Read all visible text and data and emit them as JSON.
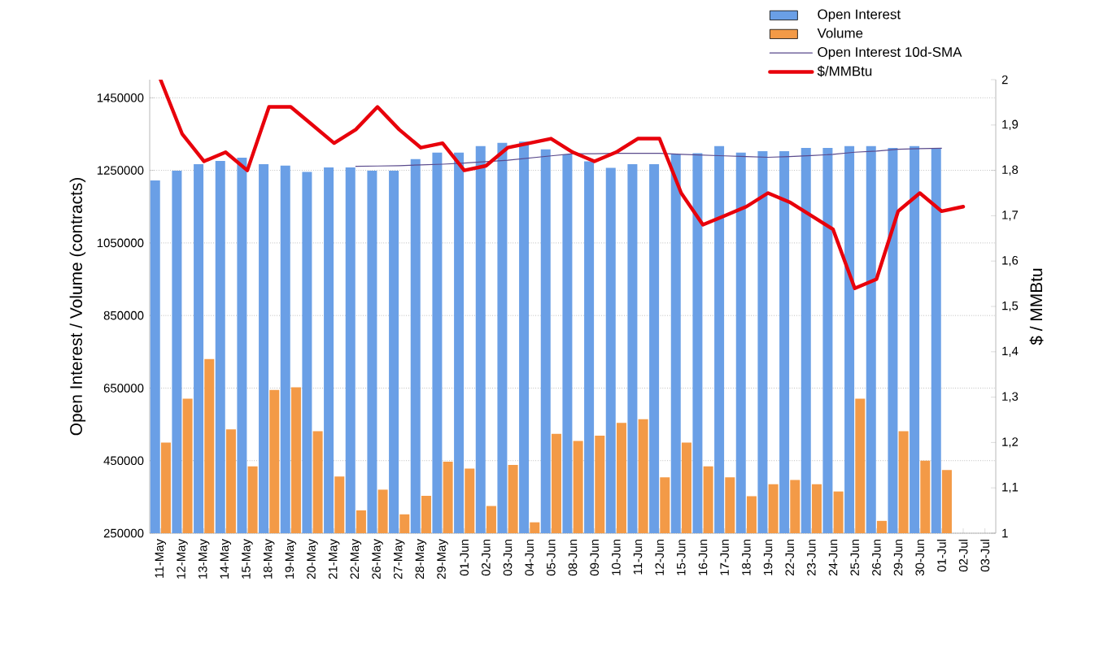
{
  "chart_data": {
    "type": "bar",
    "categories": [
      "11-May",
      "12-May",
      "13-May",
      "14-May",
      "15-May",
      "18-May",
      "19-May",
      "20-May",
      "21-May",
      "22-May",
      "26-May",
      "27-May",
      "28-May",
      "29-May",
      "01-Jun",
      "02-Jun",
      "03-Jun",
      "04-Jun",
      "05-Jun",
      "08-Jun",
      "09-Jun",
      "10-Jun",
      "11-Jun",
      "12-Jun",
      "15-Jun",
      "16-Jun",
      "17-Jun",
      "18-Jun",
      "19-Jun",
      "22-Jun",
      "23-Jun",
      "24-Jun",
      "25-Jun",
      "26-Jun",
      "29-Jun",
      "30-Jun",
      "01-Jul",
      "02-Jul",
      "03-Jul"
    ],
    "series": [
      {
        "name": "Open Interest",
        "color": "#6a9fe6",
        "values": [
          1222000,
          1249000,
          1267000,
          1276000,
          1285000,
          1267000,
          1263000,
          1246000,
          1258000,
          1258000,
          1249000,
          1249000,
          1281000,
          1299000,
          1299000,
          1317000,
          1326000,
          1329000,
          1308000,
          1294000,
          1275000,
          1257000,
          1267000,
          1267000,
          1294000,
          1297000,
          1317000,
          1299000,
          1303000,
          1303000,
          1312000,
          1312000,
          1317000,
          1317000,
          1312000,
          1317000,
          1311000,
          null,
          null
        ]
      },
      {
        "name": "Volume",
        "color": "#f39a47",
        "values": [
          500000,
          621000,
          730000,
          536000,
          434000,
          645000,
          652000,
          531000,
          406000,
          313000,
          370000,
          302000,
          353000,
          447000,
          428000,
          325000,
          438000,
          280000,
          524000,
          504000,
          519000,
          554000,
          564000,
          404000,
          500000,
          434000,
          404000,
          352000,
          385000,
          397000,
          385000,
          365000,
          621000,
          284000,
          531000,
          450000,
          424000,
          null,
          null
        ]
      },
      {
        "name": "Open Interest 10d-SMA",
        "type": "line",
        "color": "#5a4a8c",
        "values": [
          null,
          null,
          null,
          null,
          null,
          null,
          null,
          null,
          null,
          1261000,
          1262000,
          1263000,
          1265000,
          1267000,
          1270000,
          1274000,
          1278000,
          1284000,
          1290000,
          1296000,
          1296000,
          1297000,
          1297000,
          1297000,
          1294000,
          1292000,
          1290000,
          1288000,
          1286000,
          1288000,
          1291000,
          1294000,
          1300000,
          1303000,
          1308000,
          1310000,
          1311000,
          null,
          null
        ]
      },
      {
        "name": "$/MMBtu",
        "type": "line",
        "axis": "y2",
        "color": "#e8000b",
        "values": [
          2.0,
          1.88,
          1.82,
          1.84,
          1.8,
          1.94,
          1.94,
          1.9,
          1.86,
          1.89,
          1.94,
          1.89,
          1.85,
          1.86,
          1.8,
          1.81,
          1.85,
          1.86,
          1.87,
          1.84,
          1.82,
          1.84,
          1.87,
          1.87,
          1.75,
          1.68,
          1.7,
          1.72,
          1.75,
          1.73,
          1.7,
          1.67,
          1.54,
          1.56,
          1.71,
          1.75,
          1.71,
          1.72,
          null
        ]
      }
    ],
    "ylabel": "Open Interest / Volume (contracts)",
    "y2label": "$ / MMBtu",
    "ylim": [
      250000,
      1500000
    ],
    "yticks": [
      250000,
      450000,
      650000,
      850000,
      1050000,
      1250000,
      1450000
    ],
    "y2lim": [
      1,
      2
    ],
    "y2ticks": [
      1,
      {
        "value": 1.1,
        "label": "1,1"
      },
      {
        "value": 1.2,
        "label": "1,2"
      },
      {
        "value": 1.3,
        "label": "1,3"
      },
      {
        "value": 1.4,
        "label": "1,4"
      },
      {
        "value": 1.5,
        "label": "1,5"
      },
      {
        "value": 1.6,
        "label": "1,6"
      },
      {
        "value": 1.7,
        "label": "1,7"
      },
      {
        "value": 1.8,
        "label": "1,8"
      },
      {
        "value": 1.9,
        "label": "1,9"
      },
      2
    ],
    "grid": "y",
    "legend": "top right"
  }
}
